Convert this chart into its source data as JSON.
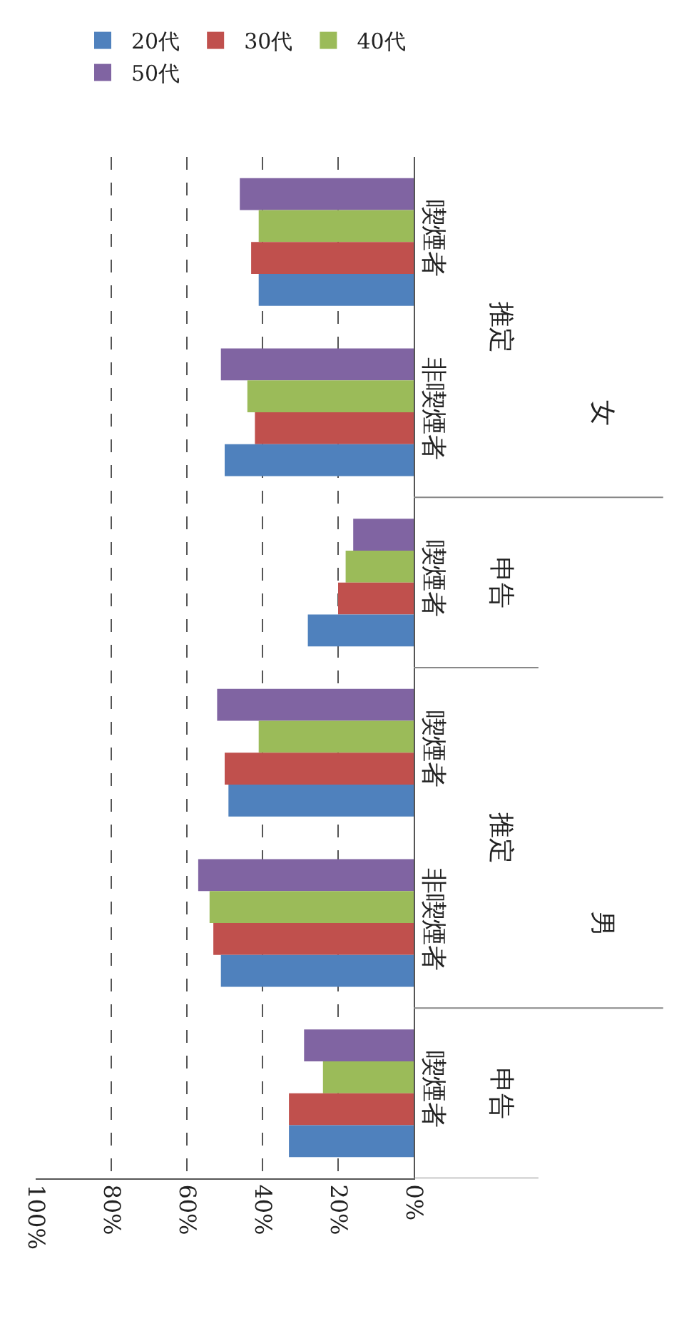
{
  "chart_data": {
    "type": "bar",
    "orientation": "horizontal",
    "categories": [
      "喫煙者",
      "非喫煙者",
      "喫煙者",
      "喫煙者",
      "非喫煙者",
      "喫煙者"
    ],
    "series": [
      {
        "name": "20代",
        "color": "#4f81bd",
        "values": [
          41,
          50,
          28,
          49,
          51,
          33
        ]
      },
      {
        "name": "30代",
        "color": "#c0504d",
        "values": [
          43,
          42,
          20,
          50,
          53,
          33
        ]
      },
      {
        "name": "40代",
        "color": "#9bbb59",
        "values": [
          41,
          44,
          18,
          41,
          54,
          24
        ]
      },
      {
        "name": "50代",
        "color": "#8064a2",
        "values": [
          46,
          51,
          16,
          52,
          57,
          29
        ]
      }
    ],
    "annotations": [
      "推定",
      "申告",
      "女",
      "推定",
      "申告",
      "男"
    ],
    "xlim": [
      100,
      0
    ],
    "xticks": [
      {
        "value": 100,
        "label": "100%"
      },
      {
        "value": 80,
        "label": "80%"
      },
      {
        "value": 60,
        "label": "60%"
      },
      {
        "value": 40,
        "label": "40%"
      },
      {
        "value": 20,
        "label": "20%"
      },
      {
        "value": 0,
        "label": "0%"
      }
    ],
    "grid": true,
    "legend": "top right"
  }
}
